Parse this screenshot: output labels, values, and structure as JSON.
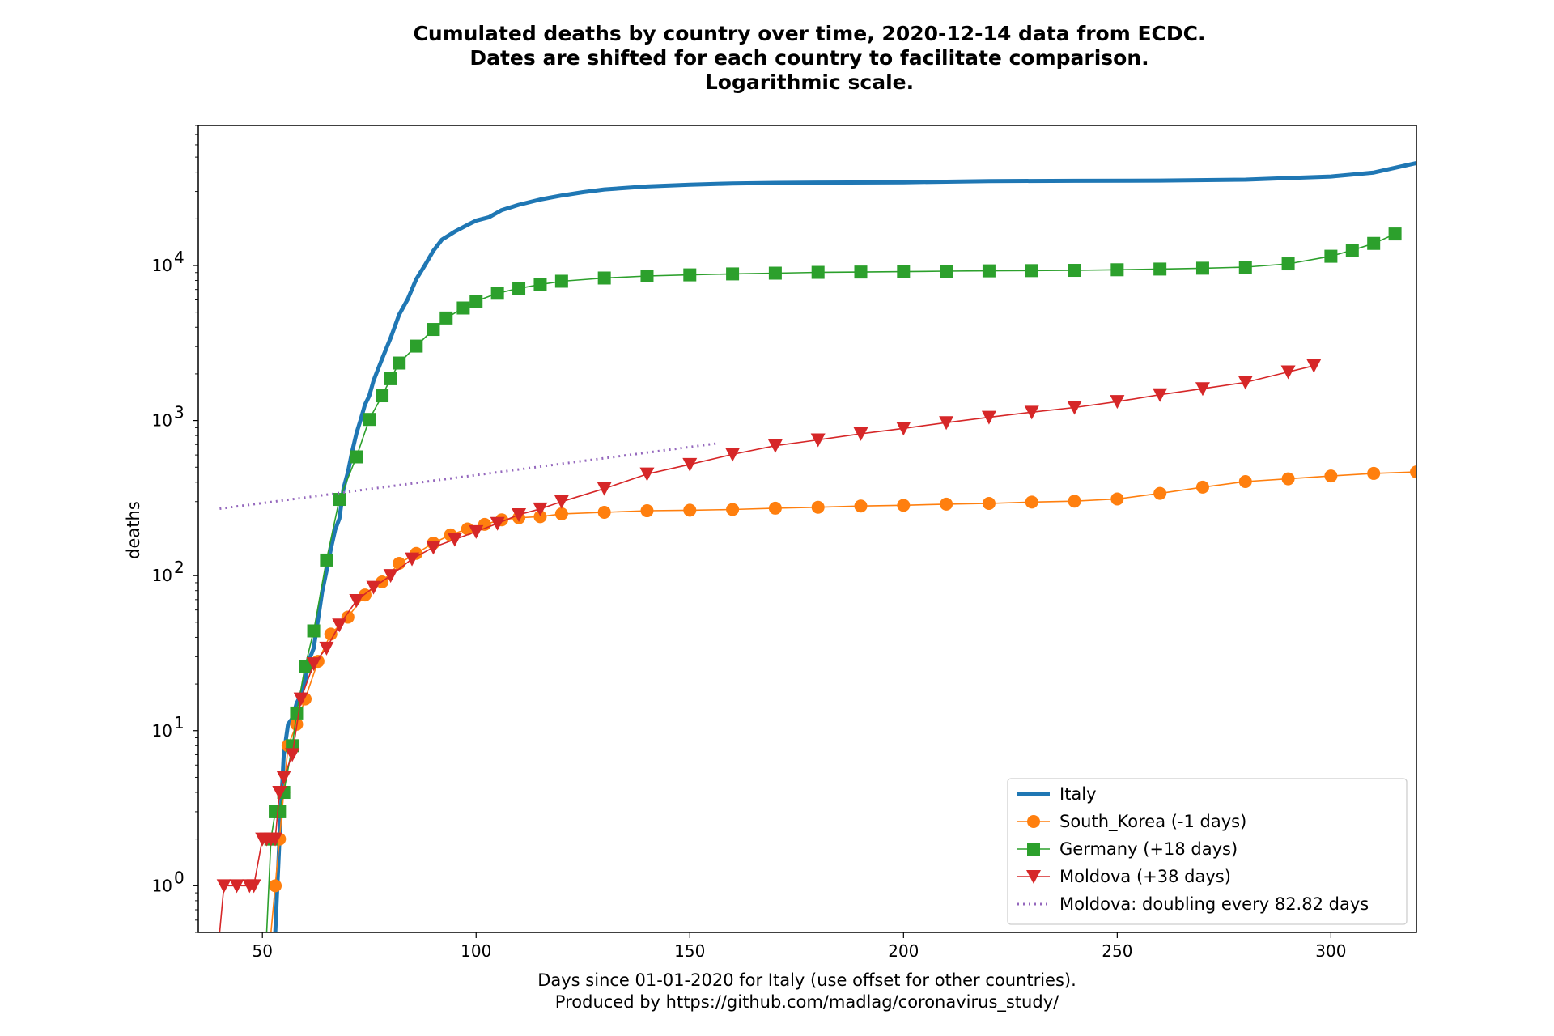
{
  "chart_data": {
    "type": "line",
    "title_lines": [
      "Cumulated deaths by country over time, 2020-12-14 data from ECDC.",
      "Dates are shifted for each country to facilitate comparison.",
      "Logarithmic scale."
    ],
    "xlabel_lines": [
      "Days since 01-01-2020 for Italy (use offset for other countries).",
      "Produced by https://github.com/madlag/coronavirus_study/"
    ],
    "ylabel": "deaths",
    "xlim": [
      35,
      320
    ],
    "ylim": [
      0.5,
      80000
    ],
    "y_scale": "log",
    "x_ticks": [
      50,
      100,
      150,
      200,
      250,
      300
    ],
    "y_ticks": [
      {
        "value": 1,
        "mantissa": "10",
        "exponent": "0"
      },
      {
        "value": 10,
        "mantissa": "10",
        "exponent": "1"
      },
      {
        "value": 100,
        "mantissa": "10",
        "exponent": "2"
      },
      {
        "value": 1000,
        "mantissa": "10",
        "exponent": "3"
      },
      {
        "value": 10000,
        "mantissa": "10",
        "exponent": "4"
      }
    ],
    "grid": false,
    "legend_position": "lower-right",
    "series": [
      {
        "name": "Italy",
        "color": "#1f77b4",
        "marker": "none",
        "line_style": "solid-thick",
        "x": [
          53,
          54,
          55,
          56,
          57,
          58,
          59,
          60,
          61,
          62,
          63,
          64,
          65,
          66,
          67,
          68,
          69,
          70,
          71,
          72,
          73,
          74,
          75,
          76,
          78,
          80,
          82,
          84,
          86,
          88,
          90,
          92,
          95,
          98,
          100,
          103,
          106,
          110,
          115,
          120,
          125,
          130,
          140,
          150,
          160,
          170,
          180,
          200,
          220,
          240,
          260,
          280,
          290,
          300,
          310,
          320
        ],
        "y": [
          0.5,
          2,
          7,
          11,
          12,
          15,
          17,
          21,
          29,
          34,
          52,
          79,
          107,
          148,
          197,
          233,
          366,
          463,
          631,
          827,
          1016,
          1266,
          1441,
          1809,
          2503,
          3405,
          4825,
          6077,
          8165,
          10023,
          12428,
          14681,
          16523,
          18279,
          19468,
          20465,
          22745,
          24648,
          26644,
          28236,
          29684,
          30911,
          32330,
          33142,
          33774,
          34061,
          34239,
          34427,
          35040,
          35141,
          35298,
          35758,
          36616,
          37479,
          39764,
          45733
        ]
      },
      {
        "name": "South_Korea (-1 days)",
        "color": "#ff7f0e",
        "marker": "circle",
        "line_style": "solid",
        "x": [
          52,
          53,
          54,
          55,
          56,
          58,
          60,
          63,
          66,
          70,
          74,
          78,
          82,
          86,
          90,
          94,
          98,
          102,
          106,
          110,
          115,
          120,
          130,
          140,
          150,
          160,
          170,
          180,
          190,
          200,
          210,
          220,
          230,
          240,
          250,
          260,
          270,
          280,
          290,
          300,
          310,
          320
        ],
        "y": [
          0.5,
          1,
          2,
          4,
          8,
          11,
          16,
          28,
          42,
          54,
          75,
          91,
          120,
          139,
          162,
          183,
          200,
          214,
          229,
          236,
          240,
          250,
          256,
          262,
          264,
          267,
          272,
          276,
          281,
          284,
          289,
          292,
          298,
          302,
          312,
          339,
          372,
          404,
          421,
          439,
          456,
          466
        ]
      },
      {
        "name": "Germany (+18 days)",
        "color": "#2ca02c",
        "marker": "square",
        "line_style": "solid",
        "x": [
          51,
          52,
          53,
          54,
          55,
          57,
          58,
          60,
          62,
          65,
          68,
          72,
          75,
          78,
          80,
          82,
          86,
          90,
          93,
          97,
          100,
          105,
          110,
          115,
          120,
          130,
          140,
          150,
          160,
          170,
          180,
          190,
          200,
          210,
          220,
          230,
          240,
          250,
          260,
          270,
          280,
          290,
          300,
          305,
          310,
          315
        ],
        "y": [
          0.5,
          2,
          3,
          3,
          4,
          8,
          13,
          26,
          44,
          126,
          310,
          583,
          1017,
          1444,
          1861,
          2349,
          3022,
          3868,
          4586,
          5321,
          5877,
          6623,
          7119,
          7533,
          7914,
          8302,
          8555,
          8701,
          8824,
          8920,
          9027,
          9071,
          9131,
          9195,
          9237,
          9268,
          9303,
          9386,
          9483,
          9604,
          9764,
          10242,
          11469,
          12547,
          13877,
          15965
        ]
      },
      {
        "name": "Moldova (+38 days)",
        "color": "#d62728",
        "marker": "triangle-down",
        "line_style": "solid",
        "x": [
          40,
          41,
          44,
          47,
          48,
          50,
          51,
          52,
          53,
          54,
          55,
          57,
          59,
          62,
          65,
          68,
          72,
          76,
          80,
          85,
          90,
          95,
          100,
          105,
          110,
          115,
          120,
          130,
          140,
          150,
          160,
          170,
          180,
          190,
          200,
          210,
          220,
          230,
          240,
          250,
          260,
          270,
          280,
          290,
          296
        ],
        "y": [
          0.5,
          1,
          1,
          1,
          1,
          2,
          2,
          2,
          2,
          4,
          5,
          7,
          16,
          27,
          34,
          48,
          69,
          84,
          100,
          128,
          152,
          171,
          192,
          217,
          247,
          269,
          300,
          364,
          452,
          521,
          605,
          688,
          750,
          822,
          890,
          969,
          1049,
          1131,
          1214,
          1325,
          1467,
          1605,
          1763,
          2060,
          2260
        ]
      },
      {
        "name": "Moldova: doubling every 82.82 days",
        "color": "#9467bd",
        "marker": "none",
        "line_style": "dotted",
        "x": [
          40,
          60,
          80,
          100,
          120,
          140,
          157
        ],
        "y": [
          270,
          319,
          377,
          445,
          526,
          621,
          716
        ]
      }
    ]
  }
}
